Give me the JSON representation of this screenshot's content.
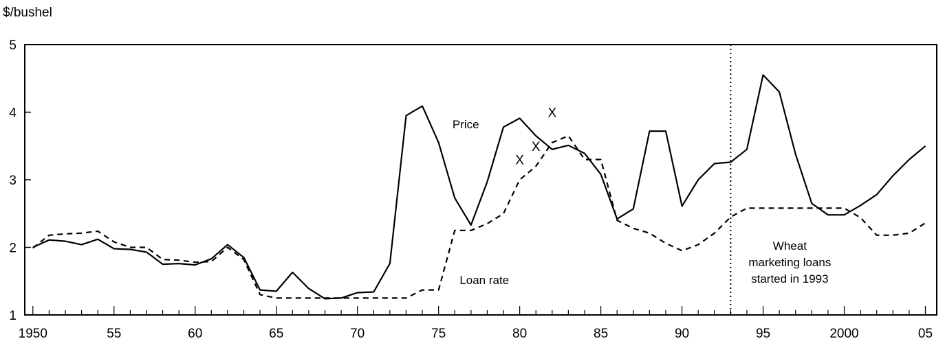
{
  "chart_data": {
    "type": "line",
    "title": "",
    "ylabel": "$/bushel",
    "xlabel": "",
    "xlim": [
      1949.5,
      2005.7
    ],
    "ylim": [
      1,
      5
    ],
    "yticks": [
      1,
      2,
      3,
      4,
      5
    ],
    "ytick_labels": [
      "1",
      "2",
      "3",
      "4",
      "5"
    ],
    "xticks_major": [
      1950,
      1955,
      1960,
      1965,
      1970,
      1975,
      1980,
      1985,
      1990,
      1995,
      2000,
      2005
    ],
    "xtick_labels": [
      "1950",
      "55",
      "60",
      "65",
      "70",
      "75",
      "80",
      "85",
      "90",
      "95",
      "2000",
      "05"
    ],
    "grid": false,
    "legend": "none",
    "series": [
      {
        "name": "Price",
        "style": "solid",
        "x": [
          1950,
          1951,
          1952,
          1953,
          1954,
          1955,
          1956,
          1957,
          1958,
          1959,
          1960,
          1961,
          1962,
          1963,
          1964,
          1965,
          1966,
          1967,
          1968,
          1969,
          1970,
          1971,
          1972,
          1973,
          1974,
          1975,
          1976,
          1977,
          1978,
          1979,
          1980,
          1981,
          1982,
          1983,
          1984,
          1985,
          1986,
          1987,
          1988,
          1989,
          1990,
          1991,
          1992,
          1993,
          1994,
          1995,
          1996,
          1997,
          1998,
          1999,
          2000,
          2001,
          2002,
          2003,
          2004,
          2005
        ],
        "values": [
          2.0,
          2.11,
          2.09,
          2.04,
          2.12,
          1.98,
          1.97,
          1.93,
          1.75,
          1.76,
          1.74,
          1.83,
          2.04,
          1.85,
          1.37,
          1.35,
          1.63,
          1.39,
          1.24,
          1.25,
          1.33,
          1.34,
          1.76,
          3.95,
          4.09,
          3.55,
          2.73,
          2.33,
          2.97,
          3.78,
          3.91,
          3.65,
          3.45,
          3.51,
          3.39,
          3.08,
          2.42,
          2.57,
          3.72,
          3.72,
          2.61,
          3.0,
          3.24,
          3.26,
          3.45,
          4.55,
          4.3,
          3.38,
          2.65,
          2.48,
          2.48,
          2.62,
          2.78,
          3.06,
          3.3,
          3.5
        ]
      },
      {
        "name": "Loan rate",
        "style": "dashed",
        "x": [
          1950,
          1951,
          1952,
          1953,
          1954,
          1955,
          1956,
          1957,
          1958,
          1959,
          1960,
          1961,
          1962,
          1963,
          1964,
          1965,
          1966,
          1967,
          1968,
          1969,
          1970,
          1971,
          1972,
          1973,
          1974,
          1975,
          1976,
          1977,
          1978,
          1979,
          1980,
          1981,
          1982,
          1983,
          1984,
          1985,
          1986,
          1987,
          1988,
          1989,
          1990,
          1991,
          1992,
          1993,
          1994,
          1995,
          1996,
          1997,
          1998,
          1999,
          2000,
          2001,
          2002,
          2003,
          2004,
          2005
        ],
        "values": [
          1.99,
          2.18,
          2.2,
          2.21,
          2.24,
          2.08,
          2.0,
          2.0,
          1.82,
          1.81,
          1.78,
          1.79,
          2.0,
          1.82,
          1.3,
          1.25,
          1.25,
          1.25,
          1.25,
          1.25,
          1.25,
          1.25,
          1.25,
          1.25,
          1.37,
          1.37,
          2.25,
          2.25,
          2.35,
          2.5,
          3.0,
          3.2,
          3.55,
          3.65,
          3.3,
          3.3,
          2.4,
          2.28,
          2.21,
          2.06,
          1.95,
          2.04,
          2.21,
          2.45,
          2.58,
          2.58,
          2.58,
          2.58,
          2.58,
          2.58,
          2.58,
          2.44,
          2.18,
          2.18,
          2.21,
          2.36
        ]
      }
    ],
    "markers": [
      {
        "label": "X",
        "x": 1980,
        "y": 3.3
      },
      {
        "label": "X",
        "x": 1981,
        "y": 3.5
      },
      {
        "label": "X",
        "x": 1982,
        "y": 4.0
      }
    ],
    "annotations": [
      {
        "name": "price-label",
        "text": "Price",
        "x": 1977.5,
        "y": 3.82
      },
      {
        "name": "loan-rate-label",
        "text": "Loan rate",
        "x": 1976.3,
        "y": 1.52
      }
    ],
    "reference_line": {
      "x": 1993,
      "style": "dotted",
      "text_lines": [
        "Wheat",
        "marketing loans",
        "started in 1993"
      ]
    }
  }
}
